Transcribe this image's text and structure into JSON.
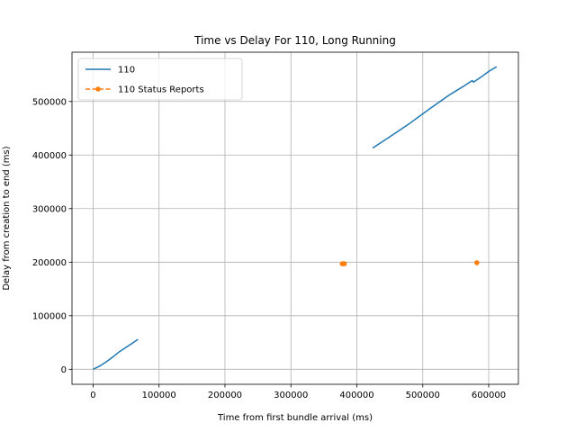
{
  "chart_data": {
    "type": "line",
    "title": "Time vs Delay For 110, Long Running",
    "xlabel": "Time from first bundle arrival (ms)",
    "ylabel": "Delay from creation to end (ms)",
    "xlim": [
      -32000,
      645000
    ],
    "ylim": [
      -28000,
      592000
    ],
    "xticks": [
      0,
      100000,
      200000,
      300000,
      400000,
      500000,
      600000
    ],
    "yticks": [
      0,
      100000,
      200000,
      300000,
      400000,
      500000
    ],
    "grid": true,
    "legend_position": "top-left",
    "series": [
      {
        "name": "110",
        "style": "solid-line",
        "color": "#1f77b4",
        "segments": [
          [
            [
              0,
              0
            ],
            [
              10000,
              6000
            ],
            [
              20000,
              14000
            ],
            [
              30000,
              23000
            ],
            [
              40000,
              33000
            ],
            [
              50000,
              41000
            ],
            [
              60000,
              49000
            ],
            [
              68000,
              56000
            ]
          ],
          [
            [
              424000,
              413000
            ],
            [
              450000,
              434000
            ],
            [
              480000,
              459000
            ],
            [
              510000,
              486000
            ],
            [
              540000,
              512000
            ],
            [
              560000,
              527000
            ],
            [
              575000,
              539000
            ],
            [
              577000,
              536000
            ],
            [
              590000,
              547000
            ],
            [
              600000,
              556000
            ],
            [
              612000,
              565000
            ]
          ]
        ]
      },
      {
        "name": "110 Status Reports",
        "style": "dashed-marker",
        "color": "#ff7f0e",
        "points": [
          [
            378000,
            197000
          ],
          [
            381000,
            197000
          ],
          [
            582000,
            199000
          ]
        ]
      }
    ]
  }
}
